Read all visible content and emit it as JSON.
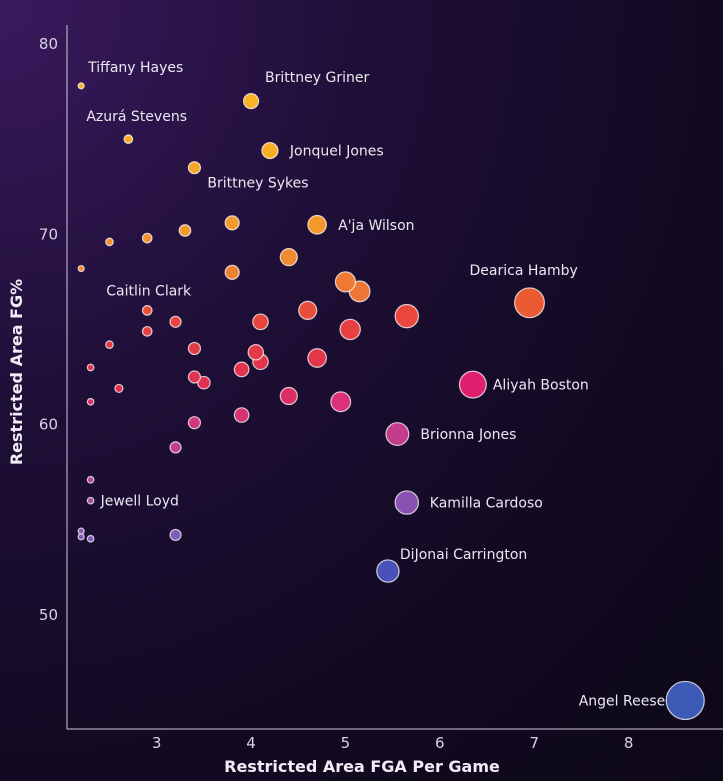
{
  "chart_data": {
    "type": "scatter",
    "title": "",
    "xlabel": "Restricted Area FGA Per Game",
    "ylabel": "Restricted Area FG%",
    "xlim": [
      2.05,
      9.0
    ],
    "ylim": [
      44,
      81
    ],
    "x_ticks": [
      3,
      4,
      5,
      6,
      7,
      8
    ],
    "y_ticks": [
      50,
      60,
      70,
      80
    ],
    "grid": false,
    "size_encodes": "Restricted Area FGA Per Game",
    "color_encodes": "Restricted Area FG%",
    "points": [
      {
        "x": 2.2,
        "y": 77.8,
        "label": "Tiffany Hayes",
        "color": "#f7b52c"
      },
      {
        "x": 4.0,
        "y": 77.0,
        "label": "Brittney Griner",
        "color": "#f8b424"
      },
      {
        "x": 2.7,
        "y": 75.0,
        "label": "Azurá Stevens",
        "color": "#f7ad27"
      },
      {
        "x": 4.2,
        "y": 74.4,
        "label": "Jonquel Jones",
        "color": "#f8ad25"
      },
      {
        "x": 3.4,
        "y": 73.5,
        "label": "Brittney Sykes",
        "color": "#f6a62b"
      },
      {
        "x": 4.7,
        "y": 70.5,
        "label": "A'ja Wilson",
        "color": "#f59a2a"
      },
      {
        "x": 3.8,
        "y": 70.6,
        "label": "",
        "color": "#f39a2c"
      },
      {
        "x": 3.3,
        "y": 70.2,
        "label": "",
        "color": "#f49a2d"
      },
      {
        "x": 2.9,
        "y": 69.8,
        "label": "",
        "color": "#f3922e"
      },
      {
        "x": 2.5,
        "y": 69.6,
        "label": "",
        "color": "#f2922f"
      },
      {
        "x": 2.2,
        "y": 68.2,
        "label": "",
        "color": "#f08a30"
      },
      {
        "x": 4.4,
        "y": 68.8,
        "label": "",
        "color": "#f08a30"
      },
      {
        "x": 3.8,
        "y": 68.0,
        "label": "",
        "color": "#ef8231"
      },
      {
        "x": 5.0,
        "y": 67.5,
        "label": "",
        "color": "#ee7a33"
      },
      {
        "x": 5.15,
        "y": 67.0,
        "label": "",
        "color": "#ee7635"
      },
      {
        "x": 6.95,
        "y": 66.4,
        "label": "Dearica Hamby",
        "color": "#ec5a34"
      },
      {
        "x": 2.9,
        "y": 66.0,
        "label": "Caitlin Clark",
        "color": "#ea4f3a"
      },
      {
        "x": 4.6,
        "y": 66.0,
        "label": "",
        "color": "#ea4c3a"
      },
      {
        "x": 5.65,
        "y": 65.7,
        "label": "",
        "color": "#e9473c"
      },
      {
        "x": 3.2,
        "y": 65.4,
        "label": "",
        "color": "#e8433f"
      },
      {
        "x": 4.1,
        "y": 65.4,
        "label": "",
        "color": "#e8443d"
      },
      {
        "x": 5.05,
        "y": 65.0,
        "label": "",
        "color": "#e73f42"
      },
      {
        "x": 2.9,
        "y": 64.9,
        "label": "",
        "color": "#e63f42"
      },
      {
        "x": 2.5,
        "y": 64.2,
        "label": "",
        "color": "#e53a45"
      },
      {
        "x": 3.4,
        "y": 64.0,
        "label": "",
        "color": "#e43a47"
      },
      {
        "x": 4.05,
        "y": 63.8,
        "label": "",
        "color": "#e43a48"
      },
      {
        "x": 4.7,
        "y": 63.5,
        "label": "",
        "color": "#e3364b"
      },
      {
        "x": 4.1,
        "y": 63.3,
        "label": "",
        "color": "#e3344c"
      },
      {
        "x": 3.9,
        "y": 62.9,
        "label": "",
        "color": "#e2324e"
      },
      {
        "x": 2.3,
        "y": 63.0,
        "label": "",
        "color": "#e2334e"
      },
      {
        "x": 3.4,
        "y": 62.5,
        "label": "",
        "color": "#e13150"
      },
      {
        "x": 3.5,
        "y": 62.2,
        "label": "",
        "color": "#e02f52"
      },
      {
        "x": 6.35,
        "y": 62.1,
        "label": "Aliyah Boston",
        "color": "#e0206f"
      },
      {
        "x": 2.6,
        "y": 61.9,
        "label": "",
        "color": "#df2f55"
      },
      {
        "x": 4.4,
        "y": 61.5,
        "label": "",
        "color": "#dc2e63"
      },
      {
        "x": 4.95,
        "y": 61.2,
        "label": "",
        "color": "#d9317a"
      },
      {
        "x": 2.3,
        "y": 61.2,
        "label": "",
        "color": "#db2f66"
      },
      {
        "x": 3.9,
        "y": 60.5,
        "label": "",
        "color": "#d63474"
      },
      {
        "x": 3.4,
        "y": 60.1,
        "label": "",
        "color": "#d2377c"
      },
      {
        "x": 5.55,
        "y": 59.5,
        "label": "Brionna Jones",
        "color": "#c43c8c"
      },
      {
        "x": 3.2,
        "y": 58.8,
        "label": "",
        "color": "#c23f8e"
      },
      {
        "x": 2.3,
        "y": 57.1,
        "label": "",
        "color": "#b0479c"
      },
      {
        "x": 2.3,
        "y": 56.0,
        "label": "Jewell Loyd",
        "color": "#a44ba6"
      },
      {
        "x": 5.65,
        "y": 55.9,
        "label": "Kamilla Cardoso",
        "color": "#8a52b0"
      },
      {
        "x": 2.2,
        "y": 54.4,
        "label": "",
        "color": "#8a56b5"
      },
      {
        "x": 2.2,
        "y": 54.1,
        "label": "",
        "color": "#8357b6"
      },
      {
        "x": 2.3,
        "y": 54.0,
        "label": "",
        "color": "#7f58b8"
      },
      {
        "x": 3.2,
        "y": 54.2,
        "label": "",
        "color": "#7e5ab9"
      },
      {
        "x": 5.45,
        "y": 52.3,
        "label": "DiJonai Carrington",
        "color": "#4a52b8"
      },
      {
        "x": 8.6,
        "y": 45.5,
        "label": "Angel Reese",
        "color": "#3d5bb6"
      }
    ]
  }
}
